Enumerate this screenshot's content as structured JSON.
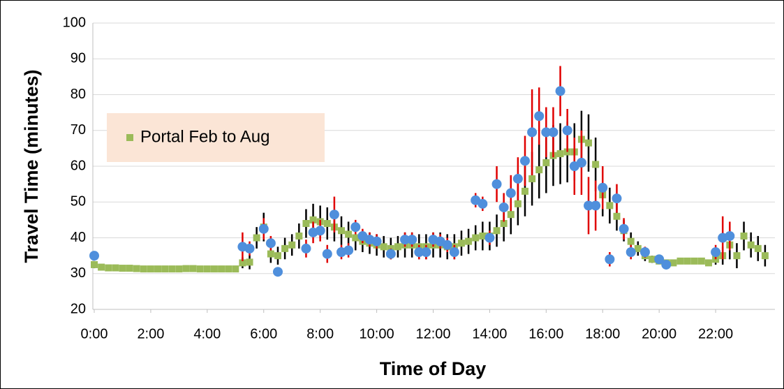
{
  "chart_data": {
    "type": "scatter",
    "x_label": "Time of Day",
    "y_label": "Travel Time (minutes)",
    "xlim": [
      0,
      24
    ],
    "ylim": [
      20,
      100
    ],
    "yticks": [
      20,
      30,
      40,
      50,
      60,
      70,
      80,
      90,
      100
    ],
    "xticks": [
      {
        "value": 0,
        "label": "0:00"
      },
      {
        "value": 2,
        "label": "2:00"
      },
      {
        "value": 4,
        "label": "4:00"
      },
      {
        "value": 6,
        "label": "6:00"
      },
      {
        "value": 8,
        "label": "8:00"
      },
      {
        "value": 10,
        "label": "10:00"
      },
      {
        "value": 12,
        "label": "12:00"
      },
      {
        "value": 14,
        "label": "14:00"
      },
      {
        "value": 16,
        "label": "16:00"
      },
      {
        "value": 18,
        "label": "18:00"
      },
      {
        "value": 20,
        "label": "20:00"
      },
      {
        "value": 22,
        "label": "22:00"
      }
    ],
    "grid": true,
    "legend": "left",
    "series": [
      {
        "name": "Portal Feb to Aug",
        "color": "#9bbb59",
        "marker": "square",
        "error_color": "#000000",
        "x": [
          0,
          0.25,
          0.5,
          0.75,
          1,
          1.25,
          1.5,
          1.75,
          2,
          2.25,
          2.5,
          2.75,
          3,
          3.25,
          3.5,
          3.75,
          4,
          4.25,
          4.5,
          4.75,
          5,
          5.25,
          5.5,
          5.75,
          6,
          6.25,
          6.5,
          6.75,
          7,
          7.25,
          7.5,
          7.75,
          8,
          8.25,
          8.5,
          8.75,
          9,
          9.25,
          9.5,
          9.75,
          10,
          10.25,
          10.5,
          10.75,
          11,
          11.25,
          11.5,
          11.75,
          12,
          12.25,
          12.5,
          12.75,
          13,
          13.25,
          13.5,
          13.75,
          14,
          14.25,
          14.5,
          14.75,
          15,
          15.25,
          15.5,
          15.75,
          16,
          16.25,
          16.5,
          16.75,
          17,
          17.25,
          17.5,
          17.75,
          18,
          18.25,
          18.5,
          18.75,
          19,
          19.25,
          19.5,
          19.75,
          20,
          20.25,
          20.5,
          20.75,
          21,
          21.25,
          21.5,
          21.75,
          22,
          22.25,
          22.5,
          22.75,
          23,
          23.25,
          23.5,
          23.75
        ],
        "values": [
          32.5,
          31.8,
          31.6,
          31.6,
          31.5,
          31.5,
          31.4,
          31.3,
          31.3,
          31.3,
          31.3,
          31.3,
          31.3,
          31.4,
          31.4,
          31.3,
          31.3,
          31.3,
          31.3,
          31.3,
          31.3,
          33,
          33.2,
          40,
          43,
          35.5,
          35,
          37,
          38,
          40.5,
          44,
          45,
          44.5,
          44,
          43,
          42,
          41,
          40,
          39,
          38.5,
          38,
          37.5,
          37,
          37.5,
          38,
          38,
          37.5,
          37.5,
          38,
          38,
          37.5,
          37.5,
          38.5,
          39,
          40,
          40.5,
          40.5,
          42,
          44,
          46.5,
          49.5,
          53,
          56.5,
          59,
          61,
          63,
          63.5,
          64,
          64,
          67.5,
          66.5,
          60.5,
          52,
          49,
          46,
          42,
          39,
          37,
          35,
          34,
          33.5,
          33,
          33,
          33.5,
          33.5,
          33.5,
          33.5,
          33,
          34,
          35,
          38,
          35,
          40.5,
          38,
          37,
          35
        ],
        "errors": [
          1,
          0.7,
          0.6,
          0.6,
          0.6,
          0.6,
          0.6,
          0.6,
          0.6,
          0.6,
          0.6,
          0.6,
          0.6,
          0.6,
          0.6,
          0.6,
          0.6,
          0.6,
          0.6,
          0.6,
          0.6,
          1.5,
          2,
          3,
          4,
          2.5,
          2.5,
          3,
          3,
          3.5,
          4,
          4.5,
          4.5,
          4.5,
          4,
          4,
          3.5,
          3.5,
          3,
          3,
          3,
          3,
          3,
          3,
          3.5,
          3.5,
          3.5,
          3.5,
          3.5,
          3.5,
          3.5,
          3.5,
          3.5,
          3.5,
          3.5,
          4,
          4,
          4.5,
          5,
          5.5,
          6,
          7,
          7.5,
          8,
          8.5,
          8.5,
          8.5,
          8.5,
          8,
          8,
          8,
          7.5,
          6,
          5,
          4,
          3,
          2.5,
          2,
          1.5,
          1,
          0.8,
          0.7,
          0.7,
          0.7,
          0.7,
          0.7,
          0.7,
          0.8,
          1.5,
          2.5,
          4,
          3.5,
          4,
          3.5,
          3.5,
          3
        ]
      },
      {
        "color": "#4f8fdc",
        "marker": "circle",
        "error_color": "#e00000",
        "x": [
          0,
          5.25,
          5.5,
          6,
          6.25,
          6.5,
          7.5,
          7.75,
          8,
          8.25,
          8.5,
          8.75,
          9,
          9.25,
          9.5,
          9.75,
          10,
          10.5,
          11,
          11.25,
          11.5,
          11.75,
          12,
          12.25,
          12.5,
          12.75,
          13.5,
          13.75,
          14,
          14.25,
          14.5,
          14.75,
          15,
          15.25,
          15.5,
          15.75,
          16,
          16.25,
          16.5,
          16.75,
          17,
          17.25,
          17.5,
          17.75,
          18,
          18.25,
          18.5,
          18.75,
          19,
          19.5,
          20,
          20.25,
          22,
          22.25,
          22.5
        ],
        "values": [
          35,
          37.5,
          37,
          42.5,
          38.5,
          30.5,
          37,
          41.5,
          42,
          35.5,
          46.5,
          36,
          36.5,
          43,
          40.5,
          39.5,
          39,
          35.5,
          39.5,
          39.5,
          36,
          36,
          39.5,
          39,
          38,
          36,
          50.5,
          49.5,
          40,
          55,
          48.5,
          52.5,
          56.5,
          61.5,
          69.5,
          74,
          69.5,
          69.5,
          81,
          70,
          60,
          61,
          49,
          49,
          54,
          34,
          51,
          42.5,
          36,
          36,
          34,
          32.5,
          36,
          40,
          40.5
        ],
        "errors": [
          1,
          4,
          2,
          3,
          2,
          1,
          2.5,
          3,
          3,
          2.5,
          5,
          2,
          2,
          2,
          2,
          2,
          2,
          1.5,
          2,
          2,
          2,
          2,
          2,
          2,
          2,
          2,
          2,
          2,
          2,
          5,
          4,
          5,
          6,
          7,
          12,
          8,
          7,
          7,
          7,
          6,
          8,
          9,
          8,
          7,
          6,
          2,
          4,
          3,
          2,
          1.5,
          1,
          1,
          2,
          6,
          4
        ]
      }
    ]
  }
}
